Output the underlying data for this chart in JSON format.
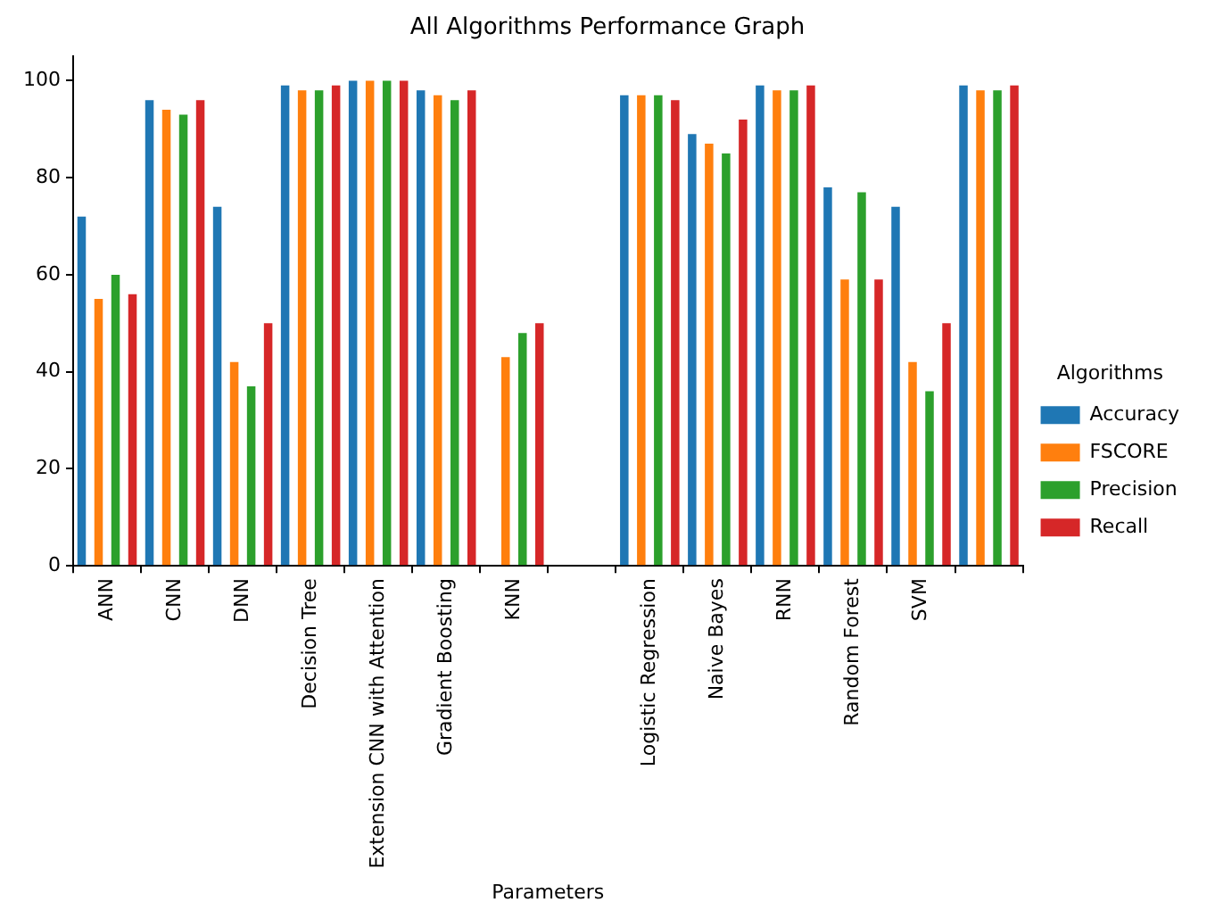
{
  "chart_data": {
    "type": "bar",
    "title": "All Algorithms Performance Graph",
    "xlabel": "Parameters",
    "legend_title": "Algorithms",
    "categories": [
      "ANN",
      "CNN",
      "DNN",
      "Decision Tree",
      "Extension CNN with Attention",
      "Gradient Boosting",
      "KNN",
      null,
      "Logistic Regression",
      "Naive Bayes",
      "RNN",
      "Random Forest",
      "SVM",
      null
    ],
    "series": [
      {
        "name": "Accuracy",
        "color": "#1f77b4",
        "values": [
          72,
          96,
          74,
          99,
          100,
          98,
          null,
          null,
          97,
          89,
          99,
          78,
          74,
          99
        ]
      },
      {
        "name": "FSCORE",
        "color": "#ff7f0e",
        "values": [
          55,
          94,
          42,
          98,
          100,
          97,
          43,
          null,
          97,
          87,
          98,
          59,
          42,
          98
        ]
      },
      {
        "name": "Precision",
        "color": "#2ca02c",
        "values": [
          60,
          93,
          37,
          98,
          100,
          96,
          48,
          null,
          97,
          85,
          98,
          77,
          36,
          98
        ]
      },
      {
        "name": "Recall",
        "color": "#d62728",
        "values": [
          56,
          96,
          50,
          99,
          100,
          98,
          50,
          null,
          96,
          92,
          99,
          59,
          50,
          99
        ]
      }
    ],
    "ylim": [
      0,
      105
    ],
    "yticks": [
      0,
      20,
      40,
      60,
      80,
      100
    ],
    "grid": false,
    "legend": "right"
  }
}
